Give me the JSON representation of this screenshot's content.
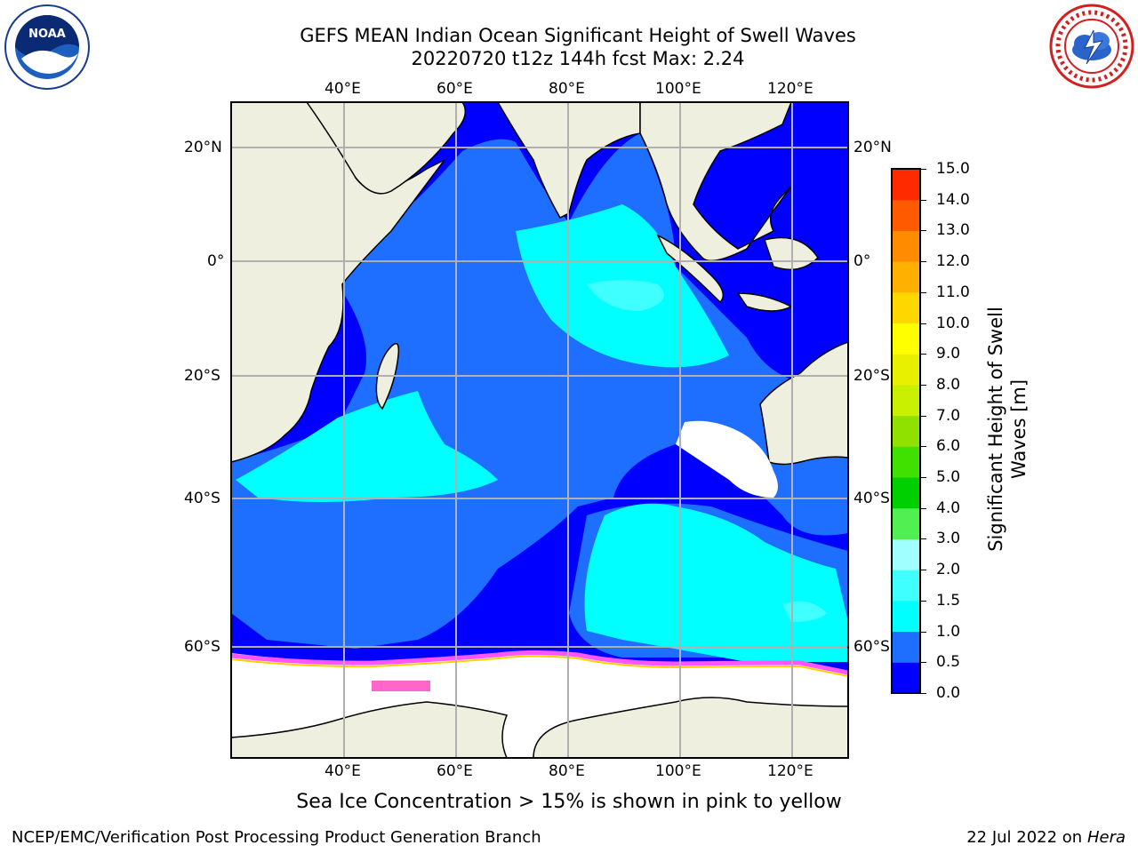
{
  "header": {
    "title_line1": "GEFS MEAN Indian Ocean Significant Height of Swell Waves",
    "title_line2": "20220720 t12z 144h fcst   Max: 2.24"
  },
  "logos": {
    "left": {
      "name": "noaa-logo",
      "text": "NOAA"
    },
    "right": {
      "name": "national-weather-service-logo"
    }
  },
  "map": {
    "top_axis_labels": [
      "40°E",
      "60°E",
      "80°E",
      "100°E",
      "120°E"
    ],
    "bottom_axis_labels": [
      "40°E",
      "60°E",
      "80°E",
      "100°E",
      "120°E"
    ],
    "left_axis_labels": [
      "20°N",
      "0°",
      "20°S",
      "40°S",
      "60°S"
    ],
    "right_axis_labels": [
      "20°N",
      "0°",
      "20°S",
      "40°S",
      "60°S"
    ],
    "land_color": "#efefdf",
    "grid": true
  },
  "colorbar": {
    "title_line1": "Significant Height of Swell",
    "title_line2": "Waves [m]",
    "ticks": [
      "0.0",
      "0.5",
      "1.0",
      "1.5",
      "2.0",
      "3.0",
      "4.0",
      "5.0",
      "6.0",
      "7.0",
      "8.0",
      "9.0",
      "10.0",
      "11.0",
      "12.0",
      "13.0",
      "14.0",
      "15.0"
    ],
    "colors": [
      "#0000ff",
      "#1e6eff",
      "#00ffff",
      "#40ffff",
      "#a0ffff",
      "#50f050",
      "#00d000",
      "#40e000",
      "#90e000",
      "#c8f000",
      "#e8f000",
      "#ffff00",
      "#ffd700",
      "#ffb000",
      "#ff8c00",
      "#ff5a00",
      "#ff2a00",
      "#ff0000"
    ]
  },
  "note": "Sea Ice Concentration > 15% is shown in pink to yellow",
  "footer": {
    "left": "NCEP/EMC/Verification Post Processing Product Generation Branch",
    "date": "22 Jul 2022 on ",
    "machine": "Hera"
  }
}
